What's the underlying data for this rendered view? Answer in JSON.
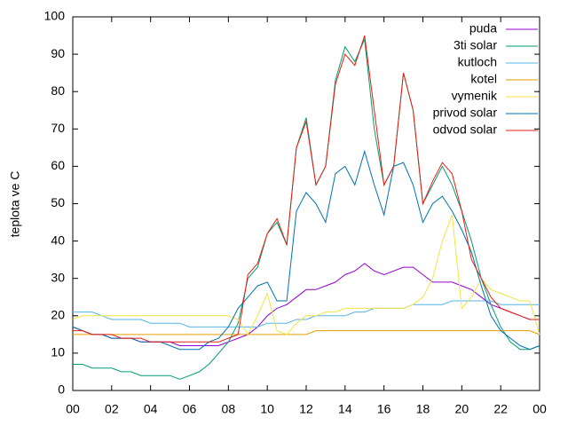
{
  "chart_data": {
    "type": "line",
    "ylabel": "teplota ve C",
    "legend": "top-right",
    "grid": false,
    "x": [
      0,
      0.5,
      1,
      1.5,
      2,
      2.5,
      3,
      3.5,
      4,
      4.5,
      5,
      5.5,
      6,
      6.5,
      7,
      7.5,
      8,
      8.5,
      9,
      9.5,
      10,
      10.5,
      11,
      11.5,
      12,
      12.5,
      13,
      13.5,
      14,
      14.5,
      15,
      15.5,
      16,
      16.5,
      17,
      17.5,
      18,
      18.5,
      19,
      19.5,
      20,
      20.5,
      21,
      21.5,
      22,
      22.5,
      23,
      23.5,
      24
    ],
    "xlim": [
      0,
      24
    ],
    "xticks": [
      {
        "value": 0,
        "label": "00"
      },
      {
        "value": 2,
        "label": "02"
      },
      {
        "value": 4,
        "label": "04"
      },
      {
        "value": 6,
        "label": "06"
      },
      {
        "value": 8,
        "label": "08"
      },
      10,
      12,
      14,
      16,
      18,
      20,
      22,
      {
        "value": 24,
        "label": "00"
      }
    ],
    "ylim": [
      0,
      100
    ],
    "yticks": [
      0,
      10,
      20,
      30,
      40,
      50,
      60,
      70,
      80,
      90,
      100
    ],
    "series": [
      {
        "name": "puda",
        "color": "#9400d3",
        "values": [
          17,
          16,
          15,
          15,
          14,
          14,
          14,
          13,
          13,
          13,
          13,
          12,
          12,
          12,
          12,
          12,
          13,
          14,
          15,
          17,
          20,
          22,
          23,
          25,
          27,
          27,
          28,
          29,
          31,
          32,
          34,
          32,
          31,
          32,
          33,
          33,
          31,
          29,
          29,
          29,
          28,
          27,
          25,
          23,
          22,
          21,
          20,
          19,
          19
        ]
      },
      {
        "name": "3ti solar",
        "color": "#009e73",
        "values": [
          7,
          7,
          6,
          6,
          6,
          5,
          5,
          4,
          4,
          4,
          4,
          3,
          4,
          5,
          7,
          10,
          13,
          18,
          30,
          33,
          42,
          45,
          39,
          65,
          73,
          55,
          60,
          83,
          92,
          88,
          94,
          70,
          55,
          60,
          85,
          75,
          50,
          55,
          60,
          55,
          48,
          40,
          30,
          23,
          17,
          13,
          11,
          11,
          12
        ]
      },
      {
        "name": "kutloch",
        "color": "#56b4e9",
        "values": [
          21,
          21,
          21,
          20,
          19,
          19,
          19,
          19,
          18,
          18,
          18,
          18,
          17,
          17,
          17,
          17,
          17,
          17,
          17,
          17,
          18,
          18,
          18,
          19,
          19,
          20,
          20,
          20,
          20,
          21,
          21,
          22,
          22,
          22,
          22,
          23,
          23,
          23,
          23,
          24,
          24,
          24,
          24,
          24,
          23,
          23,
          23,
          23,
          23
        ]
      },
      {
        "name": "kotel",
        "color": "#e69f00",
        "values": [
          15,
          15,
          15,
          15,
          15,
          15,
          15,
          15,
          15,
          15,
          15,
          15,
          15,
          15,
          15,
          15,
          15,
          15,
          15,
          15,
          15,
          15,
          15,
          15,
          15,
          16,
          16,
          16,
          16,
          16,
          16,
          16,
          16,
          16,
          16,
          16,
          16,
          16,
          16,
          16,
          16,
          16,
          16,
          16,
          16,
          16,
          16,
          16,
          15
        ]
      },
      {
        "name": "vymenik",
        "color": "#f0e442",
        "values": [
          19,
          20,
          20,
          20,
          20,
          20,
          20,
          20,
          20,
          20,
          20,
          20,
          20,
          20,
          20,
          20,
          20,
          19,
          15,
          20,
          26,
          16,
          15,
          18,
          20,
          20,
          21,
          21,
          22,
          22,
          22,
          22,
          22,
          22,
          22,
          23,
          25,
          30,
          40,
          47,
          22,
          25,
          30,
          27,
          26,
          25,
          24,
          24,
          15
        ]
      },
      {
        "name": "privod solar",
        "color": "#0072b2",
        "values": [
          17,
          16,
          15,
          15,
          14,
          14,
          14,
          13,
          13,
          13,
          12,
          11,
          11,
          11,
          13,
          14,
          17,
          22,
          25,
          28,
          29,
          24,
          24,
          48,
          53,
          50,
          45,
          58,
          60,
          55,
          64,
          55,
          47,
          60,
          61,
          55,
          45,
          50,
          52,
          48,
          43,
          37,
          28,
          20,
          16,
          14,
          12,
          11,
          12
        ]
      },
      {
        "name": "odvod solar",
        "color": "#e51e10",
        "values": [
          16,
          16,
          15,
          15,
          15,
          14,
          14,
          14,
          13,
          13,
          13,
          13,
          13,
          13,
          13,
          13,
          14,
          15,
          31,
          34,
          42,
          46,
          39,
          65,
          72,
          55,
          60,
          82,
          90,
          87,
          95,
          75,
          55,
          60,
          85,
          75,
          50,
          56,
          61,
          58,
          48,
          35,
          30,
          25,
          22,
          21,
          20,
          19,
          19
        ]
      }
    ]
  }
}
